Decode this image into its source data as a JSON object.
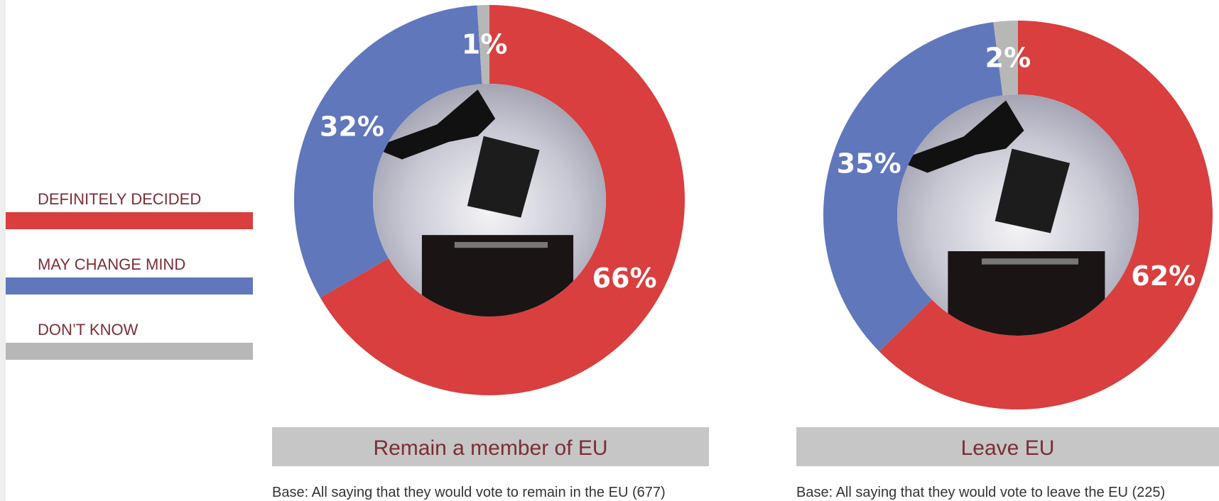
{
  "legend": {
    "labels": [
      "DEFINITELY DECIDED",
      "MAY CHANGE MIND",
      "DON’T KNOW"
    ],
    "colors": [
      "#d83f3e",
      "#6077bb",
      "#b7b7b7"
    ]
  },
  "chart_data": [
    {
      "type": "pie",
      "donut": true,
      "title": "Remain a member of EU",
      "note": "Base: All saying that they would vote to remain in the EU (677)",
      "values": [
        66,
        32,
        1
      ],
      "value_labels": [
        "66%",
        "32%",
        "1%"
      ]
    },
    {
      "type": "pie",
      "donut": true,
      "title": "Leave EU",
      "note": "Base: All saying that they would vote to leave the EU (225)",
      "values": [
        62,
        35,
        2
      ],
      "value_labels": [
        "62%",
        "35%",
        "2%"
      ]
    }
  ]
}
